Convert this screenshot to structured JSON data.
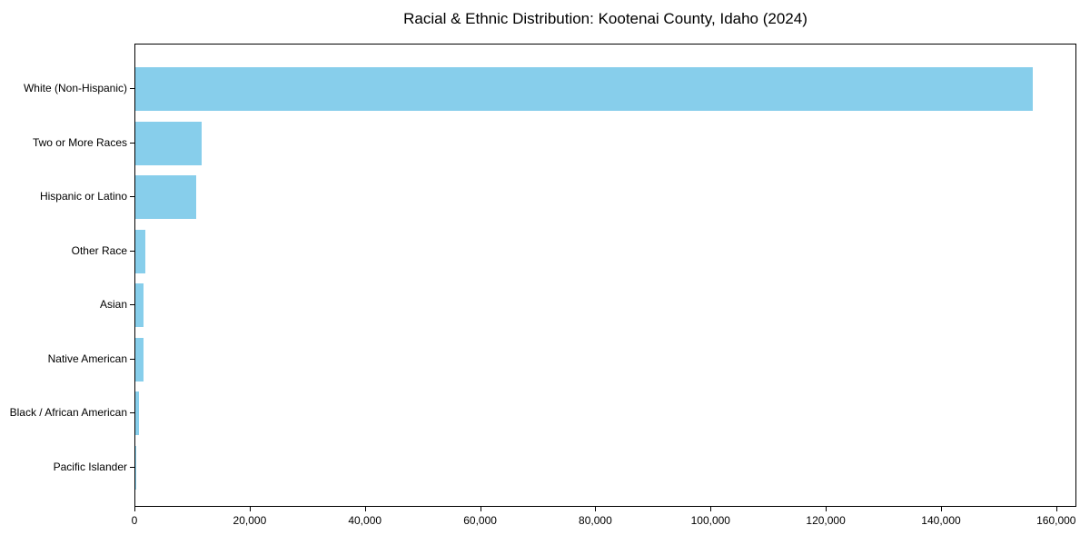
{
  "chart_data": {
    "type": "bar",
    "orientation": "horizontal",
    "title": "Racial & Ethnic Distribution: Kootenai County, Idaho (2024)",
    "categories": [
      "White (Non-Hispanic)",
      "Two or More Races",
      "Hispanic or Latino",
      "Other Race",
      "Asian",
      "Native American",
      "Black / African American",
      "Pacific Islander"
    ],
    "values": [
      155800,
      11500,
      10500,
      1800,
      1450,
      1350,
      700,
      150
    ],
    "xlabel": "",
    "ylabel": "",
    "xlim": [
      0,
      163500
    ],
    "xticks": [
      0,
      20000,
      40000,
      60000,
      80000,
      100000,
      120000,
      140000,
      160000
    ],
    "xtick_labels": [
      "0",
      "20,000",
      "40,000",
      "60,000",
      "80,000",
      "100,000",
      "120,000",
      "140,000",
      "160,000"
    ],
    "bar_color": "#87CEEB",
    "axis_color": "#000000",
    "text_color": "#000000",
    "background_color": "#ffffff",
    "grid": false,
    "legend": "none"
  }
}
